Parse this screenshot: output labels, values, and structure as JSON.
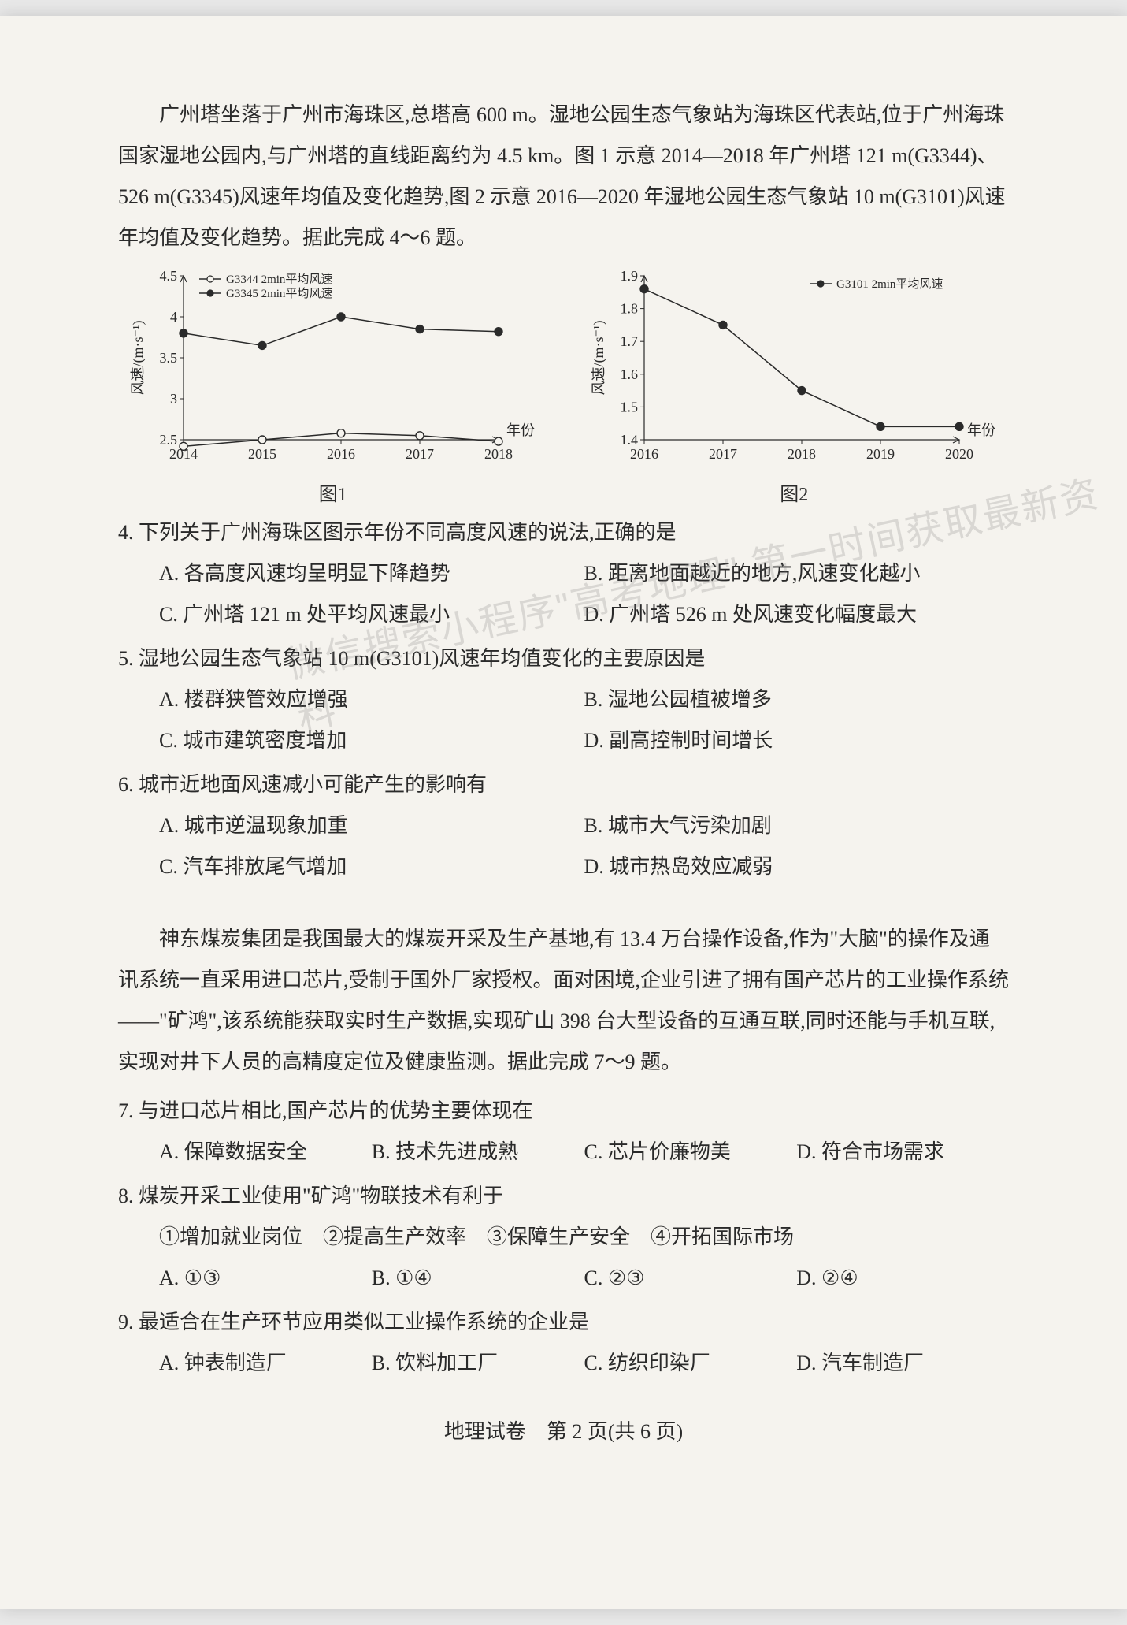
{
  "passage1": "广州塔坐落于广州市海珠区,总塔高 600 m。湿地公园生态气象站为海珠区代表站,位于广州海珠国家湿地公园内,与广州塔的直线距离约为 4.5 km。图 1 示意 2014—2018 年广州塔 121 m(G3344)、526 m(G3345)风速年均值及变化趋势,图 2 示意 2016—2020 年湿地公园生态气象站 10 m(G3101)风速年均值及变化趋势。据此完成 4～6 题。",
  "chart1": {
    "type": "line",
    "caption": "图1",
    "x_label": "年份",
    "y_label": "风速/(m·s⁻¹)",
    "x_values": [
      2014,
      2015,
      2016,
      2017,
      2018
    ],
    "xlim": [
      2014,
      2018
    ],
    "ylim": [
      2.5,
      4.5
    ],
    "yticks": [
      2.5,
      3,
      3.5,
      4,
      4.5
    ],
    "ytick_labels": [
      "2.5",
      "3",
      "3.5",
      "4",
      "4.5"
    ],
    "background_color": "#f5f3ee",
    "axis_color": "#2a2a2a",
    "text_color": "#2a2a2a",
    "label_fontsize": 18,
    "tick_fontsize": 18,
    "legend_fontsize": 15,
    "series": [
      {
        "name": "G3344 2min平均风速",
        "marker": "circle-open",
        "color": "#2a2a2a",
        "fill": "#f5f3ee",
        "line_width": 1.5,
        "marker_size": 5,
        "values": [
          2.42,
          2.5,
          2.58,
          2.55,
          2.48
        ]
      },
      {
        "name": "G3345 2min平均风速",
        "marker": "circle-solid",
        "color": "#2a2a2a",
        "fill": "#2a2a2a",
        "line_width": 1.5,
        "marker_size": 5,
        "values": [
          3.8,
          3.65,
          4.0,
          3.85,
          3.82
        ]
      }
    ]
  },
  "chart2": {
    "type": "line",
    "caption": "图2",
    "x_label": "年份",
    "y_label": "风速/(m·s⁻¹)",
    "x_values": [
      2016,
      2017,
      2018,
      2019,
      2020
    ],
    "xlim": [
      2016,
      2020
    ],
    "ylim": [
      1.4,
      1.9
    ],
    "yticks": [
      1.4,
      1.5,
      1.6,
      1.7,
      1.8,
      1.9
    ],
    "ytick_labels": [
      "1.4",
      "1.5",
      "1.6",
      "1.7",
      "1.8",
      "1.9"
    ],
    "background_color": "#f5f3ee",
    "axis_color": "#2a2a2a",
    "text_color": "#2a2a2a",
    "label_fontsize": 18,
    "tick_fontsize": 18,
    "legend_fontsize": 15,
    "series": [
      {
        "name": "G3101 2min平均风速",
        "marker": "circle-solid",
        "color": "#2a2a2a",
        "fill": "#2a2a2a",
        "line_width": 1.5,
        "marker_size": 5,
        "values": [
          1.86,
          1.75,
          1.55,
          1.44,
          1.44
        ]
      }
    ]
  },
  "q4": {
    "stem": "4. 下列关于广州海珠区图示年份不同高度风速的说法,正确的是",
    "A": "A. 各高度风速均呈明显下降趋势",
    "B": "B. 距离地面越近的地方,风速变化越小",
    "C": "C. 广州塔 121 m 处平均风速最小",
    "D": "D. 广州塔 526 m 处风速变化幅度最大"
  },
  "q5": {
    "stem": "5. 湿地公园生态气象站 10 m(G3101)风速年均值变化的主要原因是",
    "A": "A. 楼群狭管效应增强",
    "B": "B. 湿地公园植被增多",
    "C": "C. 城市建筑密度增加",
    "D": "D. 副高控制时间增长"
  },
  "q6": {
    "stem": "6. 城市近地面风速减小可能产生的影响有",
    "A": "A. 城市逆温现象加重",
    "B": "B. 城市大气污染加剧",
    "C": "C. 汽车排放尾气增加",
    "D": "D. 城市热岛效应减弱"
  },
  "passage2": "神东煤炭集团是我国最大的煤炭开采及生产基地,有 13.4 万台操作设备,作为\"大脑\"的操作及通讯系统一直采用进口芯片,受制于国外厂家授权。面对困境,企业引进了拥有国产芯片的工业操作系统——\"矿鸿\",该系统能获取实时生产数据,实现矿山 398 台大型设备的互通互联,同时还能与手机互联,实现对井下人员的高精度定位及健康监测。据此完成 7～9 题。",
  "q7": {
    "stem": "7. 与进口芯片相比,国产芯片的优势主要体现在",
    "A": "A. 保障数据安全",
    "B": "B. 技术先进成熟",
    "C": "C. 芯片价廉物美",
    "D": "D. 符合市场需求"
  },
  "q8": {
    "stem": "8. 煤炭开采工业使用\"矿鸿\"物联技术有利于",
    "circled": "①增加就业岗位　②提高生产效率　③保障生产安全　④开拓国际市场",
    "A": "A. ①③",
    "B": "B. ①④",
    "C": "C. ②③",
    "D": "D. ②④"
  },
  "q9": {
    "stem": "9. 最适合在生产环节应用类似工业操作系统的企业是",
    "A": "A. 钟表制造厂",
    "B": "B. 饮料加工厂",
    "C": "C. 纺织印染厂",
    "D": "D. 汽车制造厂"
  },
  "footer": "地理试卷　第 2 页(共 6 页)",
  "watermark": "微信搜索小程序\"高考地理\"\n第一时间获取最新资料"
}
